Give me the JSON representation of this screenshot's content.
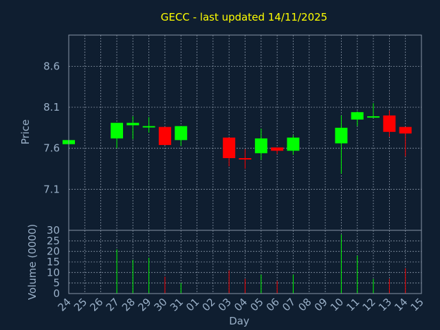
{
  "chart_data": {
    "title": "GECC - last updated 14/11/2025",
    "colors": {
      "background": "#0f1e30",
      "up": "#00ff00",
      "down": "#ff0000",
      "title": "#ffff00",
      "axis_text": "#9ab0c8",
      "grid": "#8a97a8"
    },
    "grid": true,
    "x_ticks": [
      "24",
      "25",
      "26",
      "27",
      "28",
      "29",
      "30",
      "31",
      "01",
      "02",
      "03",
      "04",
      "05",
      "06",
      "07",
      "08",
      "09",
      "10",
      "11",
      "12",
      "13",
      "14",
      "15"
    ],
    "xlabel": "Day",
    "price_panel": {
      "type": "candlestick",
      "ylabel": "Price",
      "ylim": [
        6.6,
        8.98
      ],
      "y_ticks": [
        "7.1",
        "7.6",
        "8.1",
        "8.6"
      ],
      "candles": [
        {
          "x": "24",
          "open": 7.65,
          "close": 7.7,
          "high": 7.7,
          "low": 7.65
        },
        {
          "x": "27",
          "open": 7.72,
          "close": 7.91,
          "high": 7.91,
          "low": 7.6
        },
        {
          "x": "28",
          "open": 7.88,
          "close": 7.91,
          "high": 7.99,
          "low": 7.71
        },
        {
          "x": "29",
          "open": 7.86,
          "close": 7.87,
          "high": 7.98,
          "low": 7.79
        },
        {
          "x": "30",
          "open": 7.86,
          "close": 7.64,
          "high": 7.86,
          "low": 7.64
        },
        {
          "x": "31",
          "open": 7.7,
          "close": 7.87,
          "high": 7.87,
          "low": 7.63
        },
        {
          "x": "03",
          "open": 7.73,
          "close": 7.48,
          "high": 7.73,
          "low": 7.38
        },
        {
          "x": "04",
          "open": 7.48,
          "close": 7.47,
          "high": 7.59,
          "low": 7.35
        },
        {
          "x": "05",
          "open": 7.54,
          "close": 7.72,
          "high": 7.84,
          "low": 7.46
        },
        {
          "x": "06",
          "open": 7.61,
          "close": 7.57,
          "high": 7.61,
          "low": 7.53
        },
        {
          "x": "07",
          "open": 7.57,
          "close": 7.73,
          "high": 7.76,
          "low": 7.52
        },
        {
          "x": "10",
          "open": 7.66,
          "close": 7.85,
          "high": 8.0,
          "low": 7.29
        },
        {
          "x": "11",
          "open": 7.95,
          "close": 8.04,
          "high": 8.05,
          "low": 7.87
        },
        {
          "x": "12",
          "open": 7.98,
          "close": 7.99,
          "high": 8.15,
          "low": 7.98
        },
        {
          "x": "13",
          "open": 8.0,
          "close": 7.8,
          "high": 8.06,
          "low": 7.74
        },
        {
          "x": "14",
          "open": 7.86,
          "close": 7.78,
          "high": 7.86,
          "low": 7.5
        }
      ]
    },
    "volume_panel": {
      "type": "bar",
      "ylabel": "Volume (0000)",
      "ylim": [
        0,
        30
      ],
      "y_ticks": [
        "0",
        "5",
        "10",
        "15",
        "20",
        "25",
        "30"
      ],
      "bars": [
        {
          "x": "27",
          "value": 21,
          "direction": "up"
        },
        {
          "x": "28",
          "value": 16,
          "direction": "up"
        },
        {
          "x": "29",
          "value": 17,
          "direction": "up"
        },
        {
          "x": "30",
          "value": 8,
          "direction": "down"
        },
        {
          "x": "31",
          "value": 5,
          "direction": "up"
        },
        {
          "x": "03",
          "value": 11,
          "direction": "down"
        },
        {
          "x": "04",
          "value": 7,
          "direction": "down"
        },
        {
          "x": "05",
          "value": 9,
          "direction": "up"
        },
        {
          "x": "06",
          "value": 6,
          "direction": "down"
        },
        {
          "x": "07",
          "value": 9,
          "direction": "up"
        },
        {
          "x": "10",
          "value": 28,
          "direction": "up"
        },
        {
          "x": "11",
          "value": 18,
          "direction": "up"
        },
        {
          "x": "12",
          "value": 7,
          "direction": "up"
        },
        {
          "x": "13",
          "value": 7,
          "direction": "down"
        },
        {
          "x": "14",
          "value": 12,
          "direction": "down"
        }
      ]
    }
  }
}
